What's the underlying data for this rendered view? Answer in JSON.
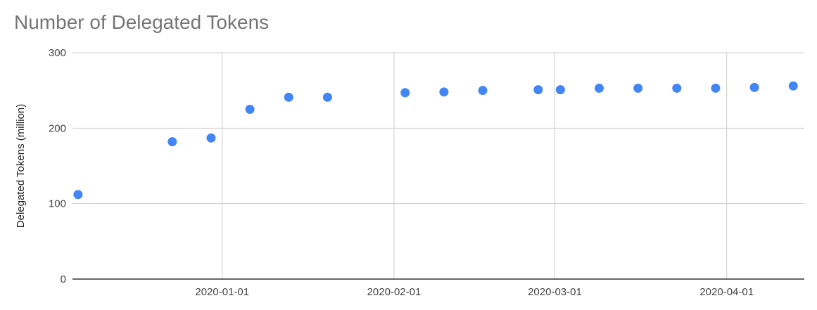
{
  "chart_data": {
    "type": "scatter",
    "title": "Number of Delegated Tokens",
    "xlabel": "",
    "ylabel": "Delegated Tokens (million)",
    "ylim": [
      0,
      300
    ],
    "xlim": [
      "2019-12-05",
      "2020-04-15"
    ],
    "y_ticks": [
      "0",
      "100",
      "200",
      "300"
    ],
    "x_ticks": [
      "2020-01-01",
      "2020-02-01",
      "2020-03-01",
      "2020-04-01"
    ],
    "x_grid_dates": [
      "2020-01-01",
      "2020-02-01",
      "2020-03-01",
      "2020-04-01"
    ],
    "grid": true,
    "legend": "none",
    "point_color": "#4285f4",
    "series": [
      {
        "points": [
          {
            "x": "2019-12-06",
            "y": 112
          },
          {
            "x": "2019-12-23",
            "y": 182
          },
          {
            "x": "2019-12-30",
            "y": 187
          },
          {
            "x": "2020-01-06",
            "y": 225
          },
          {
            "x": "2020-01-13",
            "y": 241
          },
          {
            "x": "2020-01-20",
            "y": 241
          },
          {
            "x": "2020-02-03",
            "y": 247
          },
          {
            "x": "2020-02-10",
            "y": 248
          },
          {
            "x": "2020-02-17",
            "y": 250
          },
          {
            "x": "2020-02-27",
            "y": 251
          },
          {
            "x": "2020-03-02",
            "y": 251
          },
          {
            "x": "2020-03-09",
            "y": 253
          },
          {
            "x": "2020-03-16",
            "y": 253
          },
          {
            "x": "2020-03-23",
            "y": 253
          },
          {
            "x": "2020-03-30",
            "y": 253
          },
          {
            "x": "2020-04-06",
            "y": 254
          },
          {
            "x": "2020-04-13",
            "y": 256
          }
        ]
      }
    ]
  }
}
